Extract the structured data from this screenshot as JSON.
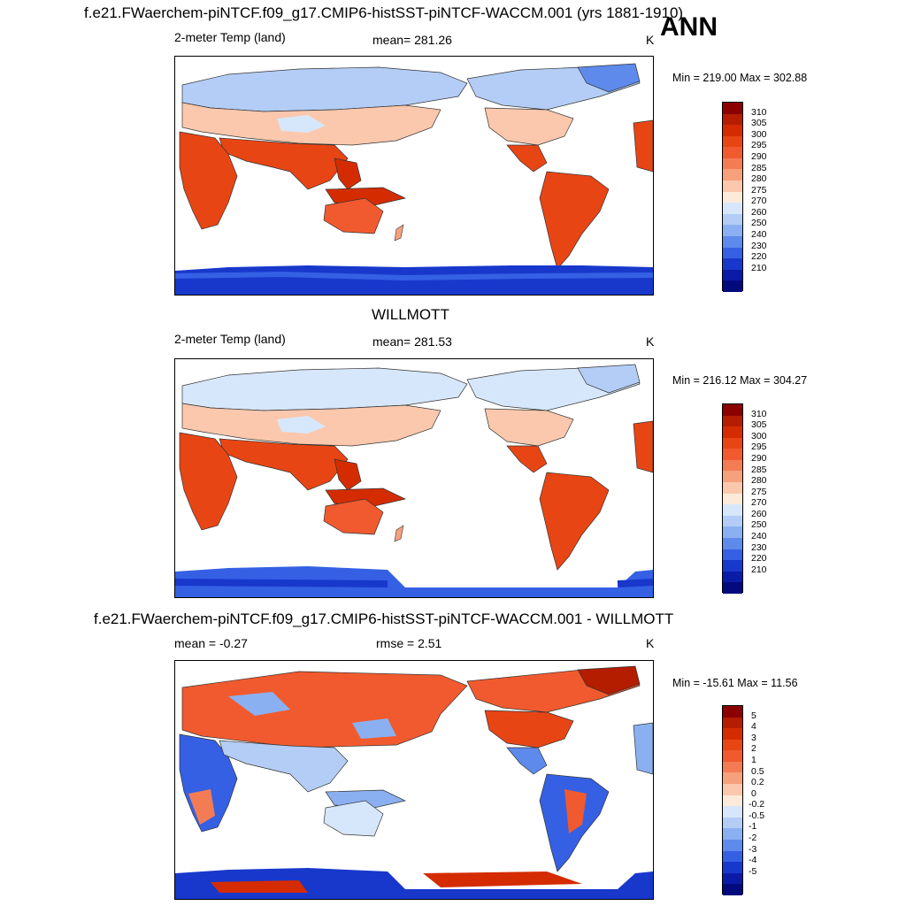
{
  "header": {
    "title": "f.e21.FWaerchem-piNTCF.f09_g17.CMIP6-histSST-piNTCF-WACCM.001 (yrs 1881-1910)",
    "season": "ANN"
  },
  "panels": [
    {
      "id": "model",
      "var_label": "2-meter Temp (land)",
      "mean_text": "mean= 281.26",
      "units": "K",
      "minmax": "Min = 219.00 Max = 302.88"
    },
    {
      "id": "obs",
      "heading": "WILLMOTT",
      "var_label": "2-meter Temp (land)",
      "mean_text": "mean= 281.53",
      "units": "K",
      "minmax": "Min = 216.12 Max = 304.27"
    },
    {
      "id": "diff",
      "heading": "f.e21.FWaerchem-piNTCF.f09_g17.CMIP6-histSST-piNTCF-WACCM.001 - WILLMOTT",
      "mean_text": "mean =  -0.27",
      "rmse_text": "rmse =   2.51",
      "units": "K",
      "minmax": "Min = -15.61 Max =  11.56"
    }
  ],
  "colorbars": {
    "temp": {
      "labels": [
        "310",
        "305",
        "300",
        "295",
        "290",
        "285",
        "280",
        "275",
        "270",
        "260",
        "250",
        "240",
        "230",
        "220",
        "210"
      ],
      "colors": [
        "#8b0000",
        "#b41d00",
        "#d42c00",
        "#e84515",
        "#f15a2e",
        "#f37c54",
        "#f7a07c",
        "#fbc8ad",
        "#fdebda",
        "#d7e7fb",
        "#b3cdf6",
        "#8bb0f1",
        "#5d8aeb",
        "#3560e4",
        "#1838cc",
        "#0a1ba8",
        "#020a7e"
      ]
    },
    "diff": {
      "labels": [
        "5",
        "4",
        "3",
        "2",
        "1",
        "0.5",
        "0.2",
        "0",
        "-0.2",
        "-0.5",
        "-1",
        "-2",
        "-3",
        "-4",
        "-5"
      ],
      "colors": [
        "#8b0000",
        "#b41d00",
        "#d42c00",
        "#e84515",
        "#f15a2e",
        "#f37c54",
        "#f7a07c",
        "#fbc8ad",
        "#fdebda",
        "#d7e7fb",
        "#b3cdf6",
        "#8bb0f1",
        "#5d8aeb",
        "#3560e4",
        "#1838cc",
        "#0a1ba8",
        "#020a7e"
      ]
    }
  },
  "chart_data": [
    {
      "type": "heatmap",
      "title": "2-meter Temp (land)",
      "subtitle": "f.e21.FWaerchem-piNTCF.f09_g17.CMIP6-histSST-piNTCF-WACCM.001 (yrs 1881-1910)",
      "units": "K",
      "mean": 281.26,
      "min": 219.0,
      "max": 302.88,
      "levels": [
        210,
        220,
        230,
        240,
        250,
        260,
        270,
        275,
        280,
        285,
        290,
        295,
        300,
        305,
        310
      ]
    },
    {
      "type": "heatmap",
      "title": "WILLMOTT 2-meter Temp (land)",
      "units": "K",
      "mean": 281.53,
      "min": 216.12,
      "max": 304.27,
      "levels": [
        210,
        220,
        230,
        240,
        250,
        260,
        270,
        275,
        280,
        285,
        290,
        295,
        300,
        305,
        310
      ]
    },
    {
      "type": "heatmap",
      "title": "f.e21.FWaerchem-piNTCF.f09_g17.CMIP6-histSST-piNTCF-WACCM.001 - WILLMOTT",
      "units": "K",
      "mean": -0.27,
      "rmse": 2.51,
      "min": -15.61,
      "max": 11.56,
      "levels": [
        -5,
        -4,
        -3,
        -2,
        -1,
        -0.5,
        -0.2,
        0,
        0.2,
        0.5,
        1,
        2,
        3,
        4,
        5
      ]
    }
  ]
}
